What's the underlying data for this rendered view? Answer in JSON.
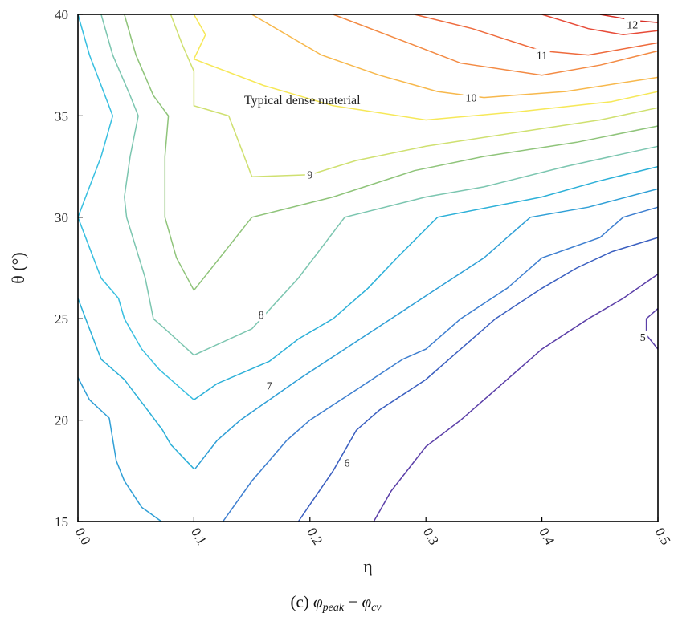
{
  "chart_data": {
    "type": "contour",
    "xlabel": "η",
    "ylabel": "θ (°)",
    "xlim": [
      0.0,
      0.5
    ],
    "ylim": [
      15,
      40
    ],
    "xticks": [
      "0.0",
      "0.1",
      "0.2",
      "0.3",
      "0.4",
      "0.5"
    ],
    "yticks": [
      "15",
      "20",
      "25",
      "30",
      "35",
      "40"
    ],
    "grid": false,
    "annotation": "Typical dense material",
    "caption": "(c) φpeak − φcv",
    "caption_parts": {
      "prefix": "(c) ",
      "a": "φ",
      "a_sub": "peak",
      "minus": " − ",
      "b": "φ",
      "b_sub": "cv"
    },
    "levels": [
      {
        "level": 5,
        "label": "5",
        "color": "#5b3fa8",
        "segments": [
          [
            [
              0.255,
              15.0
            ],
            [
              0.27,
              16.5
            ],
            [
              0.3,
              18.7
            ],
            [
              0.33,
              20.0
            ],
            [
              0.36,
              21.5
            ],
            [
              0.38,
              22.5
            ],
            [
              0.4,
              23.5
            ],
            [
              0.44,
              25.0
            ],
            [
              0.47,
              26.0
            ],
            [
              0.5,
              27.2
            ]
          ],
          [
            [
              0.5,
              25.5
            ],
            [
              0.49,
              25.0
            ],
            [
              0.49,
              24.2
            ],
            [
              0.5,
              23.5
            ]
          ]
        ],
        "label_at": [
          0.487,
          24.1
        ]
      },
      {
        "level": 5.5,
        "label": "",
        "color": "#3b5fc0",
        "segments": [
          [
            [
              0.19,
              15.0
            ],
            [
              0.22,
              17.5
            ],
            [
              0.24,
              19.5
            ],
            [
              0.26,
              20.5
            ],
            [
              0.3,
              22.0
            ],
            [
              0.33,
              23.5
            ],
            [
              0.36,
              25.0
            ],
            [
              0.4,
              26.5
            ],
            [
              0.43,
              27.5
            ],
            [
              0.46,
              28.3
            ],
            [
              0.5,
              29.0
            ]
          ]
        ]
      },
      {
        "level": 6,
        "label": "6",
        "color": "#3e7fd0",
        "segments": [
          [
            [
              0.125,
              15.0
            ],
            [
              0.15,
              17.0
            ],
            [
              0.18,
              19.0
            ],
            [
              0.2,
              20.0
            ],
            [
              0.24,
              21.5
            ],
            [
              0.28,
              23.0
            ],
            [
              0.3,
              23.5
            ],
            [
              0.33,
              25.0
            ],
            [
              0.37,
              26.5
            ],
            [
              0.4,
              28.0
            ],
            [
              0.45,
              29.0
            ],
            [
              0.47,
              30.0
            ],
            [
              0.5,
              30.5
            ]
          ]
        ],
        "label_at": [
          0.232,
          17.9
        ]
      },
      {
        "level": 6.5,
        "label": "",
        "color": "#2f9fd6",
        "segments": [
          [
            [
              0.0,
              22.1
            ],
            [
              0.01,
              21.0
            ],
            [
              0.027,
              20.1
            ],
            [
              0.033,
              18.0
            ],
            [
              0.04,
              17.0
            ],
            [
              0.055,
              15.7
            ],
            [
              0.072,
              15.0
            ]
          ],
          [
            [
              0.101,
              17.6
            ],
            [
              0.12,
              19.0
            ],
            [
              0.14,
              20.0
            ],
            [
              0.19,
              22.0
            ],
            [
              0.23,
              23.5
            ],
            [
              0.27,
              25.0
            ],
            [
              0.31,
              26.5
            ],
            [
              0.35,
              28.0
            ],
            [
              0.38,
              29.5
            ],
            [
              0.39,
              30.0
            ],
            [
              0.44,
              30.5
            ],
            [
              0.5,
              31.4
            ]
          ]
        ]
      },
      {
        "level": 7,
        "label": "7",
        "color": "#2cb0d8",
        "segments": [
          [
            [
              0.0,
              26.0
            ],
            [
              0.01,
              24.5
            ],
            [
              0.02,
              23.0
            ],
            [
              0.04,
              22.0
            ],
            [
              0.06,
              20.5
            ],
            [
              0.073,
              19.5
            ],
            [
              0.08,
              18.8
            ],
            [
              0.1,
              17.6
            ]
          ],
          [
            [
              0.1,
              21.0
            ],
            [
              0.12,
              21.8
            ],
            [
              0.165,
              22.9
            ],
            [
              0.19,
              24.0
            ],
            [
              0.22,
              25.0
            ],
            [
              0.25,
              26.5
            ],
            [
              0.275,
              28.0
            ],
            [
              0.31,
              30.0
            ],
            [
              0.4,
              31.0
            ],
            [
              0.45,
              31.8
            ],
            [
              0.5,
              32.5
            ]
          ]
        ],
        "label_at": [
          0.165,
          21.7
        ]
      },
      {
        "level": 7.5,
        "label": "",
        "color": "#38bfe0",
        "segments": [
          [
            [
              0.0,
              40.0
            ],
            [
              0.01,
              38.0
            ],
            [
              0.02,
              36.5
            ],
            [
              0.03,
              35.0
            ],
            [
              0.02,
              33.0
            ],
            [
              0.01,
              31.5
            ],
            [
              0.0,
              30.0
            ],
            [
              0.01,
              28.5
            ],
            [
              0.02,
              27.0
            ],
            [
              0.035,
              26.0
            ],
            [
              0.04,
              25.0
            ],
            [
              0.055,
              23.5
            ],
            [
              0.07,
              22.5
            ],
            [
              0.1,
              21.0
            ]
          ]
        ]
      },
      {
        "level": 8,
        "label": "8",
        "color": "#7cc6b0",
        "segments": [
          [
            [
              0.02,
              40.0
            ],
            [
              0.03,
              38.0
            ],
            [
              0.045,
              36.0
            ],
            [
              0.052,
              35.0
            ],
            [
              0.045,
              33.0
            ],
            [
              0.04,
              31.0
            ],
            [
              0.042,
              30.0
            ],
            [
              0.05,
              28.5
            ],
            [
              0.058,
              27.0
            ],
            [
              0.065,
              25.0
            ],
            [
              0.075,
              24.5
            ],
            [
              0.1,
              23.2
            ]
          ],
          [
            [
              0.1,
              23.2
            ],
            [
              0.15,
              24.5
            ],
            [
              0.19,
              27.0
            ],
            [
              0.23,
              30.0
            ],
            [
              0.3,
              31.0
            ],
            [
              0.35,
              31.5
            ],
            [
              0.42,
              32.5
            ],
            [
              0.5,
              33.5
            ]
          ]
        ],
        "label_at": [
          0.158,
          25.2
        ]
      },
      {
        "level": 8.5,
        "label": "",
        "color": "#8fc47a",
        "segments": [
          [
            [
              0.04,
              40.0
            ],
            [
              0.05,
              38.0
            ],
            [
              0.065,
              36.0
            ],
            [
              0.078,
              35.0
            ],
            [
              0.075,
              33.0
            ],
            [
              0.075,
              31.5
            ],
            [
              0.075,
              30.0
            ],
            [
              0.085,
              28.0
            ],
            [
              0.1,
              26.4
            ],
            [
              0.15,
              30.0
            ],
            [
              0.22,
              31.0
            ],
            [
              0.29,
              32.3
            ],
            [
              0.35,
              33.0
            ],
            [
              0.43,
              33.7
            ],
            [
              0.5,
              34.5
            ]
          ]
        ]
      },
      {
        "level": 9,
        "label": "9",
        "color": "#cfe070",
        "segments": [
          [
            [
              0.08,
              40.0
            ],
            [
              0.09,
              38.5
            ],
            [
              0.1,
              37.2
            ],
            [
              0.1,
              35.5
            ],
            [
              0.13,
              35.0
            ],
            [
              0.14,
              33.5
            ],
            [
              0.15,
              32.0
            ],
            [
              0.2,
              32.1
            ],
            [
              0.24,
              32.8
            ],
            [
              0.3,
              33.5
            ],
            [
              0.38,
              34.2
            ],
            [
              0.45,
              34.8
            ],
            [
              0.5,
              35.4
            ]
          ]
        ],
        "label_at": [
          0.2,
          32.1
        ]
      },
      {
        "level": 9.5,
        "label": "",
        "color": "#f6e858",
        "segments": [
          [
            [
              0.1,
              40.0
            ],
            [
              0.11,
              39.0
            ],
            [
              0.1,
              37.8
            ],
            [
              0.16,
              36.5
            ],
            [
              0.22,
              35.5
            ],
            [
              0.3,
              34.8
            ],
            [
              0.38,
              35.2
            ],
            [
              0.46,
              35.7
            ],
            [
              0.5,
              36.2
            ]
          ]
        ]
      },
      {
        "level": 10,
        "label": "10",
        "color": "#f7b84c",
        "segments": [
          [
            [
              0.15,
              40.0
            ],
            [
              0.21,
              38.0
            ],
            [
              0.26,
              37.0
            ],
            [
              0.31,
              36.2
            ],
            [
              0.35,
              35.9
            ],
            [
              0.42,
              36.2
            ],
            [
              0.5,
              36.9
            ]
          ]
        ],
        "label_at": [
          0.339,
          35.9
        ]
      },
      {
        "level": 10.5,
        "label": "",
        "color": "#f38a43",
        "segments": [
          [
            [
              0.22,
              40.0
            ],
            [
              0.28,
              38.7
            ],
            [
              0.33,
              37.6
            ],
            [
              0.4,
              37.0
            ],
            [
              0.45,
              37.5
            ],
            [
              0.5,
              38.2
            ]
          ]
        ]
      },
      {
        "level": 11,
        "label": "11",
        "color": "#ee6a3c",
        "segments": [
          [
            [
              0.29,
              40.0
            ],
            [
              0.34,
              39.3
            ],
            [
              0.4,
              38.2
            ],
            [
              0.44,
              38.0
            ],
            [
              0.5,
              38.6
            ]
          ]
        ],
        "label_at": [
          0.4,
          38.0
        ]
      },
      {
        "level": 11.5,
        "label": "",
        "color": "#e74b38",
        "segments": [
          [
            [
              0.4,
              40.0
            ],
            [
              0.44,
              39.3
            ],
            [
              0.47,
              39.0
            ],
            [
              0.5,
              39.2
            ]
          ]
        ]
      },
      {
        "level": 12,
        "label": "12",
        "color": "#d73027",
        "segments": [
          [
            [
              0.45,
              40.0
            ],
            [
              0.48,
              39.7
            ],
            [
              0.5,
              39.6
            ]
          ]
        ],
        "label_at": [
          0.478,
          39.5
        ]
      }
    ]
  }
}
